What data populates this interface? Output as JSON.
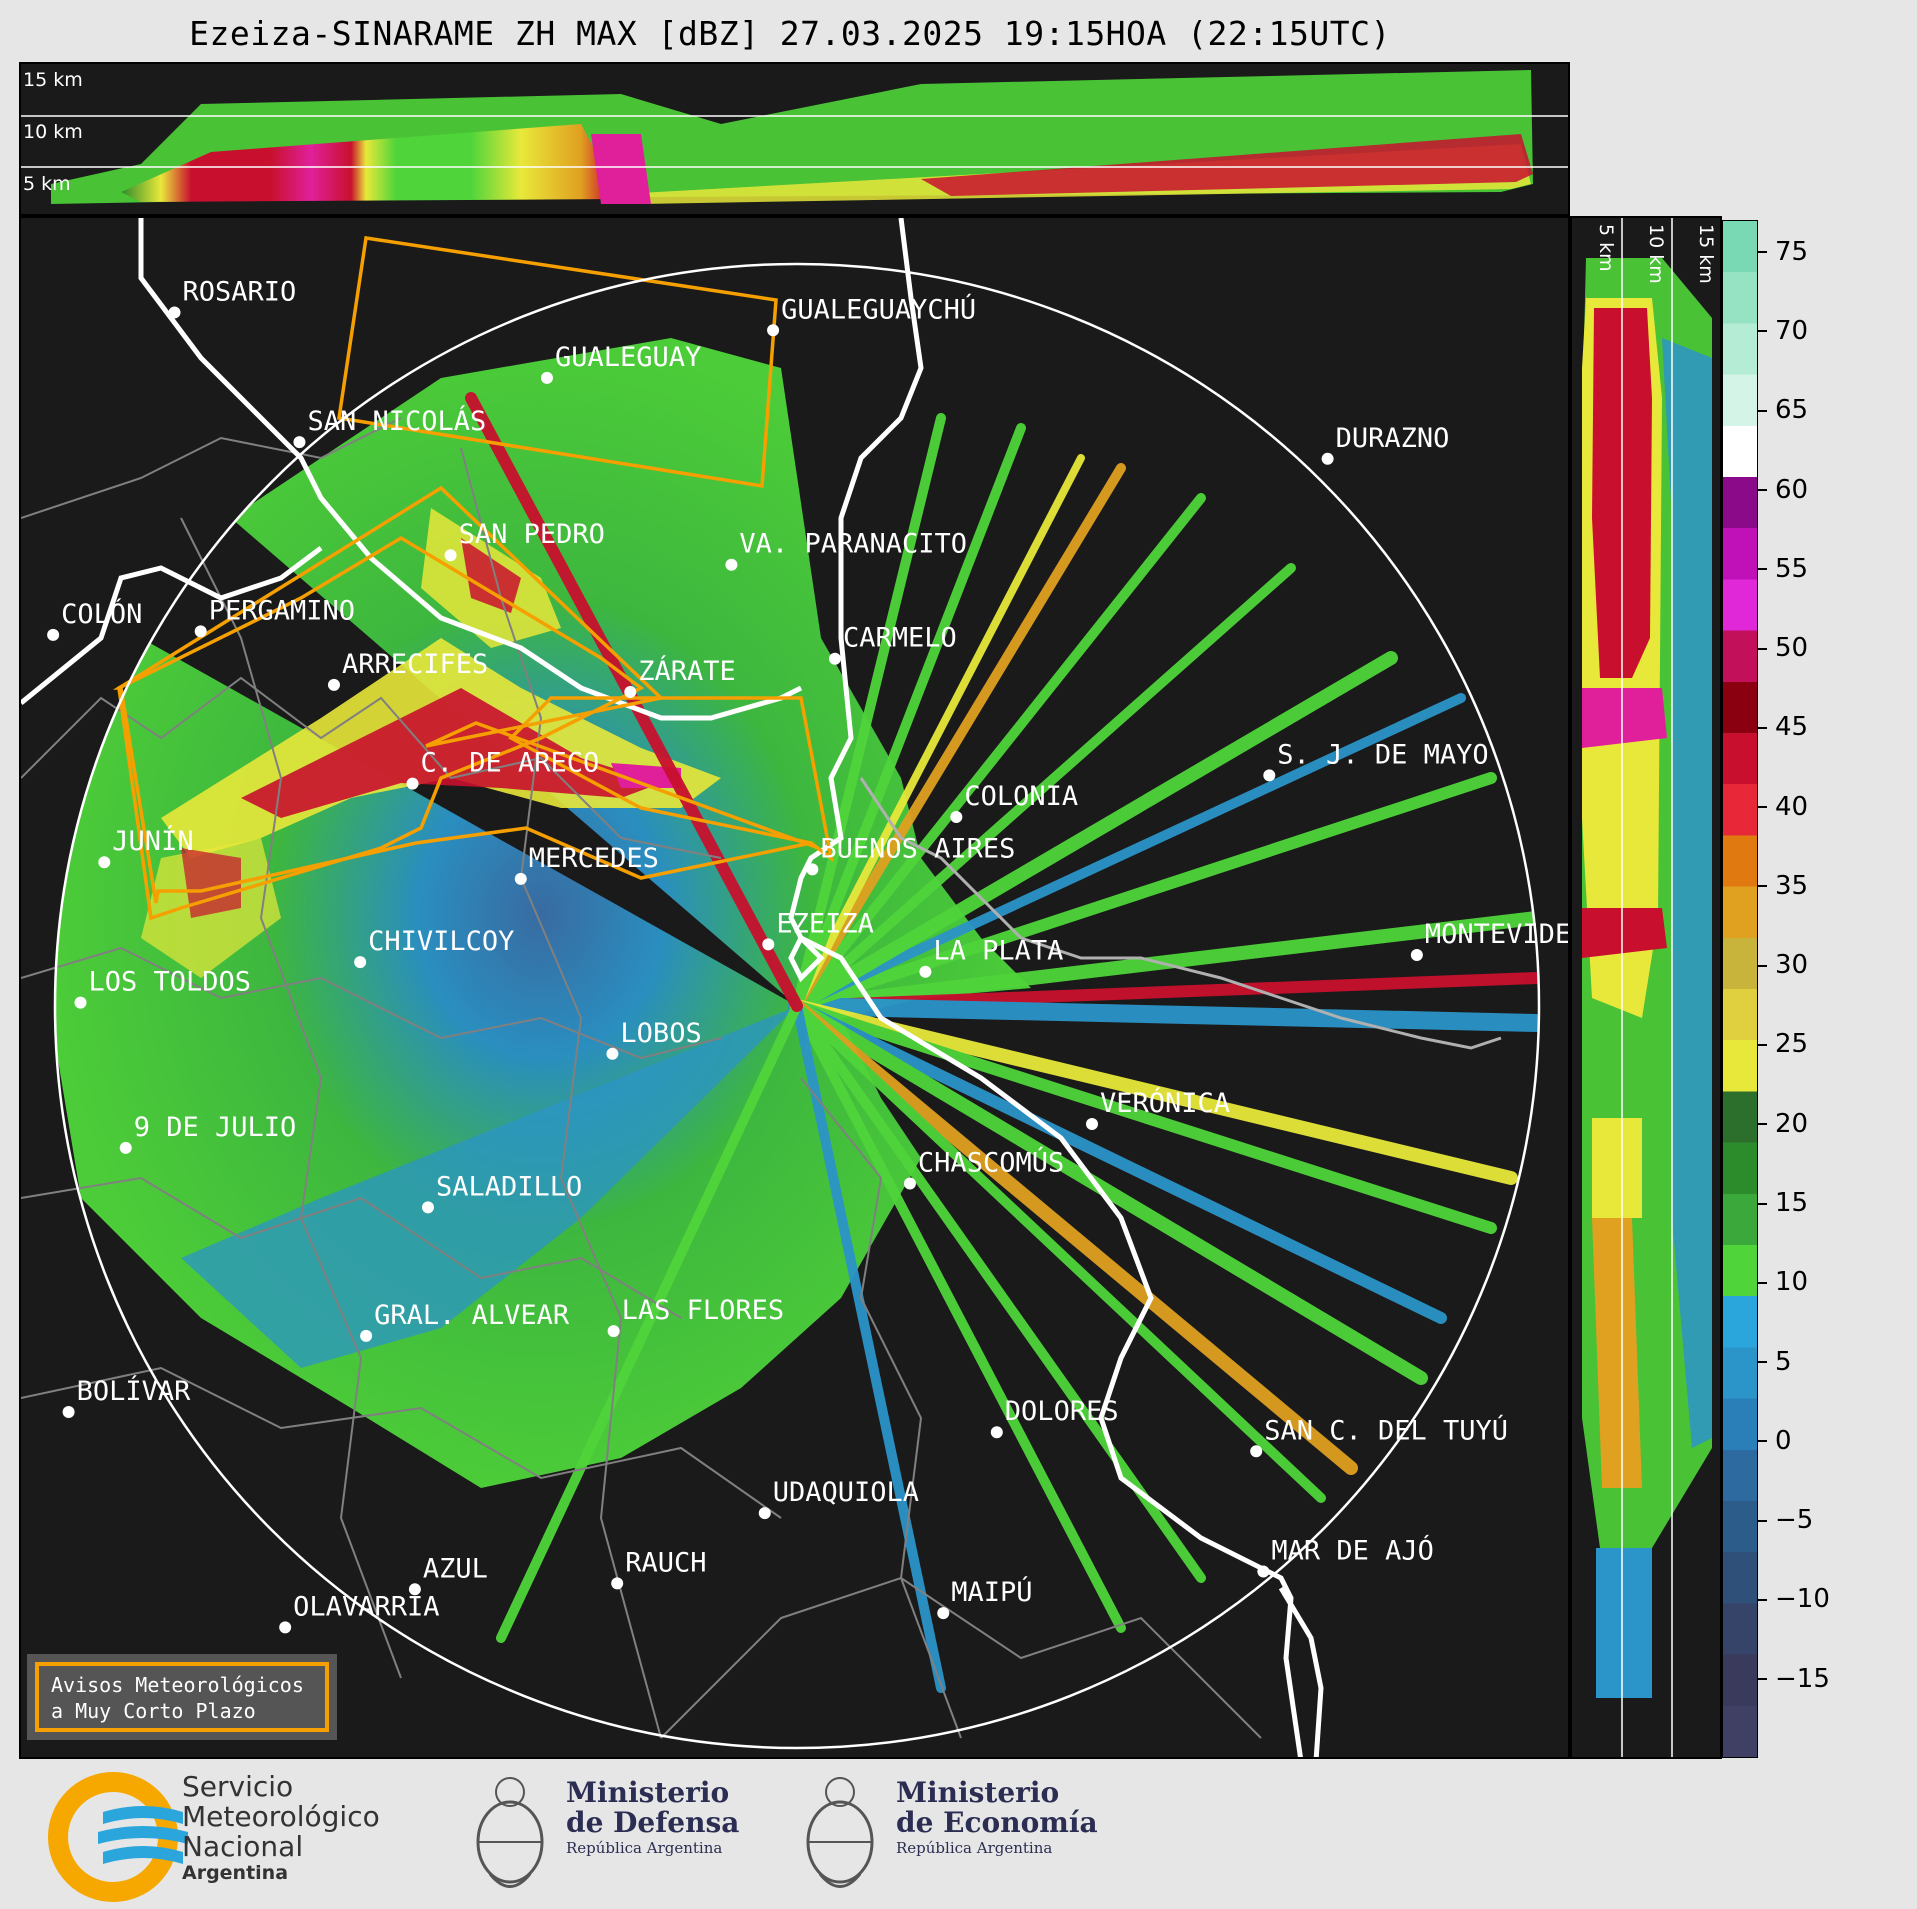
{
  "title": "Ezeiza-SINARAME ZH MAX [dBZ] 27.03.2025 19:15HOA (22:15UTC)",
  "top_panel": {
    "altitude_labels": [
      "15 km",
      "10 km",
      "5 km"
    ]
  },
  "side_panel": {
    "altitude_labels": [
      "5 km",
      "10 km",
      "15 km"
    ]
  },
  "colorbar": {
    "unit": "dBZ",
    "ticks": [
      "75",
      "70",
      "65",
      "60",
      "55",
      "50",
      "45",
      "40",
      "35",
      "30",
      "25",
      "20",
      "15",
      "10",
      "5",
      "0",
      "−5",
      "−10",
      "−15"
    ],
    "range": [
      -20,
      77
    ]
  },
  "cities": [
    {
      "name": "ROSARIO"
    },
    {
      "name": "GUALEGUAYCHÚ"
    },
    {
      "name": "GUALEGUAY"
    },
    {
      "name": "SAN NICOLÁS"
    },
    {
      "name": "DURAZNO"
    },
    {
      "name": "SAN PEDRO"
    },
    {
      "name": "VA. PARANACITO"
    },
    {
      "name": "COLÓN"
    },
    {
      "name": "PERGAMINO"
    },
    {
      "name": "CARMELO"
    },
    {
      "name": "ARRECIFES"
    },
    {
      "name": "ZÁRATE"
    },
    {
      "name": "S. J. DE MAYO"
    },
    {
      "name": "C. DE ARECO"
    },
    {
      "name": "COLONIA"
    },
    {
      "name": "JUNÍN"
    },
    {
      "name": "BUENOS AIRES"
    },
    {
      "name": "MERCEDES"
    },
    {
      "name": "EZEIZA"
    },
    {
      "name": "MONTEVIDEO"
    },
    {
      "name": "CHIVILCOY"
    },
    {
      "name": "LA PLATA"
    },
    {
      "name": "LOS TOLDOS"
    },
    {
      "name": "LOBOS"
    },
    {
      "name": "VERÓNICA"
    },
    {
      "name": "9 DE JULIO"
    },
    {
      "name": "CHASCOMÚS"
    },
    {
      "name": "SALADILLO"
    },
    {
      "name": "GRAL. ALVEAR"
    },
    {
      "name": "LAS FLORES"
    },
    {
      "name": "BOLÍVAR"
    },
    {
      "name": "DOLORES"
    },
    {
      "name": "SAN C. DEL TUYÚ"
    },
    {
      "name": "UDAQUIOLA"
    },
    {
      "name": "MAR DE AJÓ"
    },
    {
      "name": "AZUL"
    },
    {
      "name": "RAUCH"
    },
    {
      "name": "OLAVARRÍA"
    },
    {
      "name": "MAIPÚ"
    }
  ],
  "notice": {
    "line1": "Avisos Meteorológicos",
    "line2": "a Muy Corto Plazo"
  },
  "footer": {
    "smn": {
      "line1": "Servicio",
      "line2": "Meteorológico",
      "line3": "Nacional",
      "line4": "Argentina"
    },
    "defensa": {
      "line1": "Ministerio",
      "line2": "de Defensa",
      "line3": "República Argentina"
    },
    "economia": {
      "line1": "Ministerio",
      "line2": "de Economía",
      "line3": "República Argentina"
    }
  },
  "colors": {
    "warning_polygon": "#f5a000",
    "background": "#1a1a1a",
    "coast": "#ffffff",
    "borders": "#808080"
  }
}
